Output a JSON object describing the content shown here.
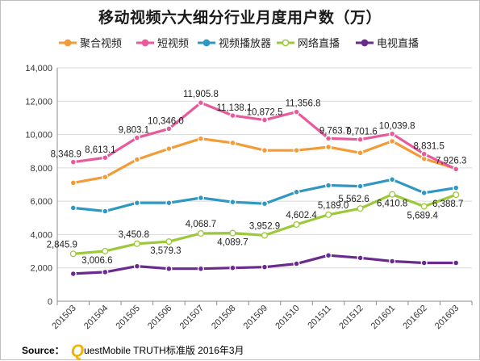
{
  "chart_data": {
    "type": "line",
    "title": "移动视频六大细分行业月度用户数（万）",
    "xlabel": "",
    "ylabel": "",
    "categories": [
      "201503",
      "201504",
      "201505",
      "201506",
      "201507",
      "201508",
      "201509",
      "201510",
      "201511",
      "201512",
      "201601",
      "201602",
      "201603"
    ],
    "ylim": [
      0,
      14000
    ],
    "yticks": [
      "0",
      "2,000",
      "4,000",
      "6,000",
      "8,000",
      "10,000",
      "12,000",
      "14,000"
    ],
    "ytick_values": [
      0,
      2000,
      4000,
      6000,
      8000,
      10000,
      12000,
      14000
    ],
    "grid": true,
    "legend_position": "top",
    "series": [
      {
        "name": "聚合视频",
        "color": "#f39b38",
        "marker": "filled-circle",
        "values": [
          7100,
          7450,
          8500,
          9150,
          9750,
          9500,
          9050,
          9050,
          9250,
          8900,
          9600,
          8550,
          7950
        ],
        "labels": []
      },
      {
        "name": "短视频",
        "color": "#e85a9c",
        "marker": "filled-circle",
        "values": [
          8348.9,
          8613.1,
          9803.1,
          10346.0,
          11905.8,
          11138.1,
          10872.5,
          11356.8,
          9763.7,
          9701.6,
          10039.8,
          8831.5,
          7926.3
        ],
        "labels": [
          "8,348.9",
          "8,613.1",
          "9,803.1",
          "10,346.0",
          "11,905.8",
          "11,138.1",
          "10,872.5",
          "11,356.8",
          "9,763.7",
          "9,701.6",
          "10,039.8",
          "8,831.5",
          "7,926.3"
        ]
      },
      {
        "name": "视频播放器",
        "color": "#2e97c2",
        "marker": "filled-circle",
        "values": [
          5600,
          5400,
          5900,
          5900,
          6200,
          5950,
          5850,
          6550,
          6950,
          6900,
          7300,
          6500,
          6800
        ],
        "labels": []
      },
      {
        "name": "网络直播",
        "color": "#9cc93a",
        "marker": "open-circle",
        "values": [
          2845.9,
          3006.6,
          3450.8,
          3579.3,
          4068.7,
          4089.7,
          3952.9,
          4602.4,
          5189.0,
          5562.6,
          6410.8,
          5689.4,
          6388.7
        ],
        "labels": [
          "2,845.9",
          "3,006.6",
          "3,450.8",
          "3,579.3",
          "4,068.7",
          "4,089.7",
          "3,952.9",
          "4,602.4",
          "5,189.0",
          "5,562.6",
          "6,410.8",
          "5,689.4",
          "6,388.7"
        ]
      },
      {
        "name": "电视直播",
        "color": "#6a2a8e",
        "marker": "filled-circle",
        "values": [
          1650,
          1750,
          2100,
          1950,
          1950,
          2000,
          2050,
          2250,
          2750,
          2600,
          2400,
          2300,
          2300
        ],
        "labels": []
      }
    ]
  },
  "source": {
    "label": "Source：",
    "logo_letter": "Q",
    "text": "uestMobile TRUTH标准版 2016年3月"
  }
}
